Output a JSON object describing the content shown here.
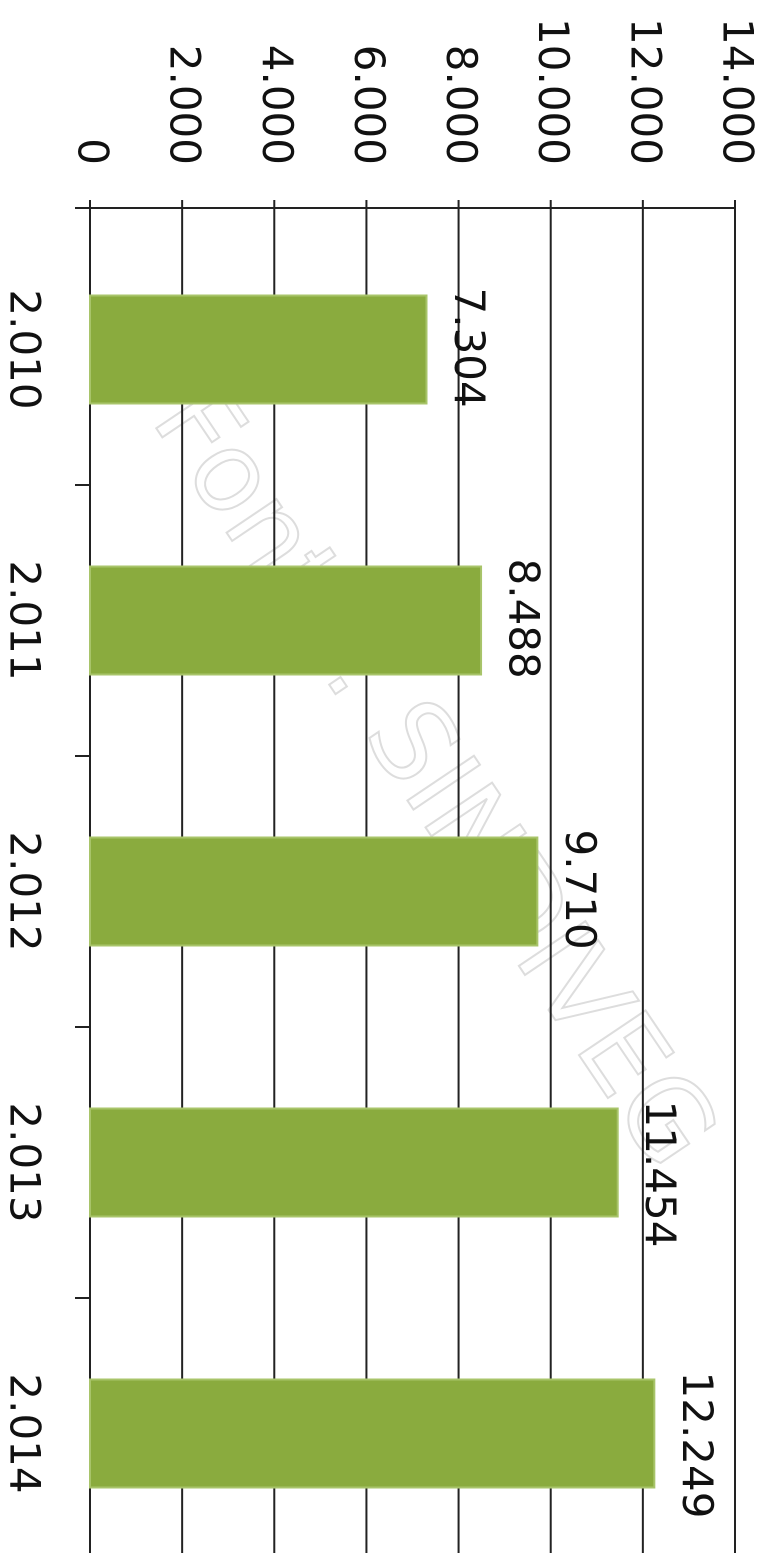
{
  "chart_data": {
    "type": "bar",
    "orientation": "horizontal",
    "categories": [
      "2.010",
      "2.011",
      "2.012",
      "2.013",
      "2.014"
    ],
    "values": [
      7304,
      8488,
      9710,
      11454,
      12249
    ],
    "value_labels": [
      "7.304",
      "8.488",
      "9.710",
      "11.454",
      "12.249"
    ],
    "color": "#8aab3e",
    "ylim": [
      0,
      14000
    ],
    "yticks": [
      0,
      {
        "value": 2000,
        "label": "2.000"
      },
      {
        "value": 4000,
        "label": "4.000"
      },
      {
        "value": 6000,
        "label": "6.000"
      },
      {
        "value": 8000,
        "label": "8.000"
      },
      {
        "value": 10000,
        "label": "10.000"
      },
      {
        "value": 12000,
        "label": "12.000"
      },
      {
        "value": 14000,
        "label": "14.000"
      }
    ],
    "grid": true,
    "annotation": "Fonte: SINDIVEG"
  }
}
